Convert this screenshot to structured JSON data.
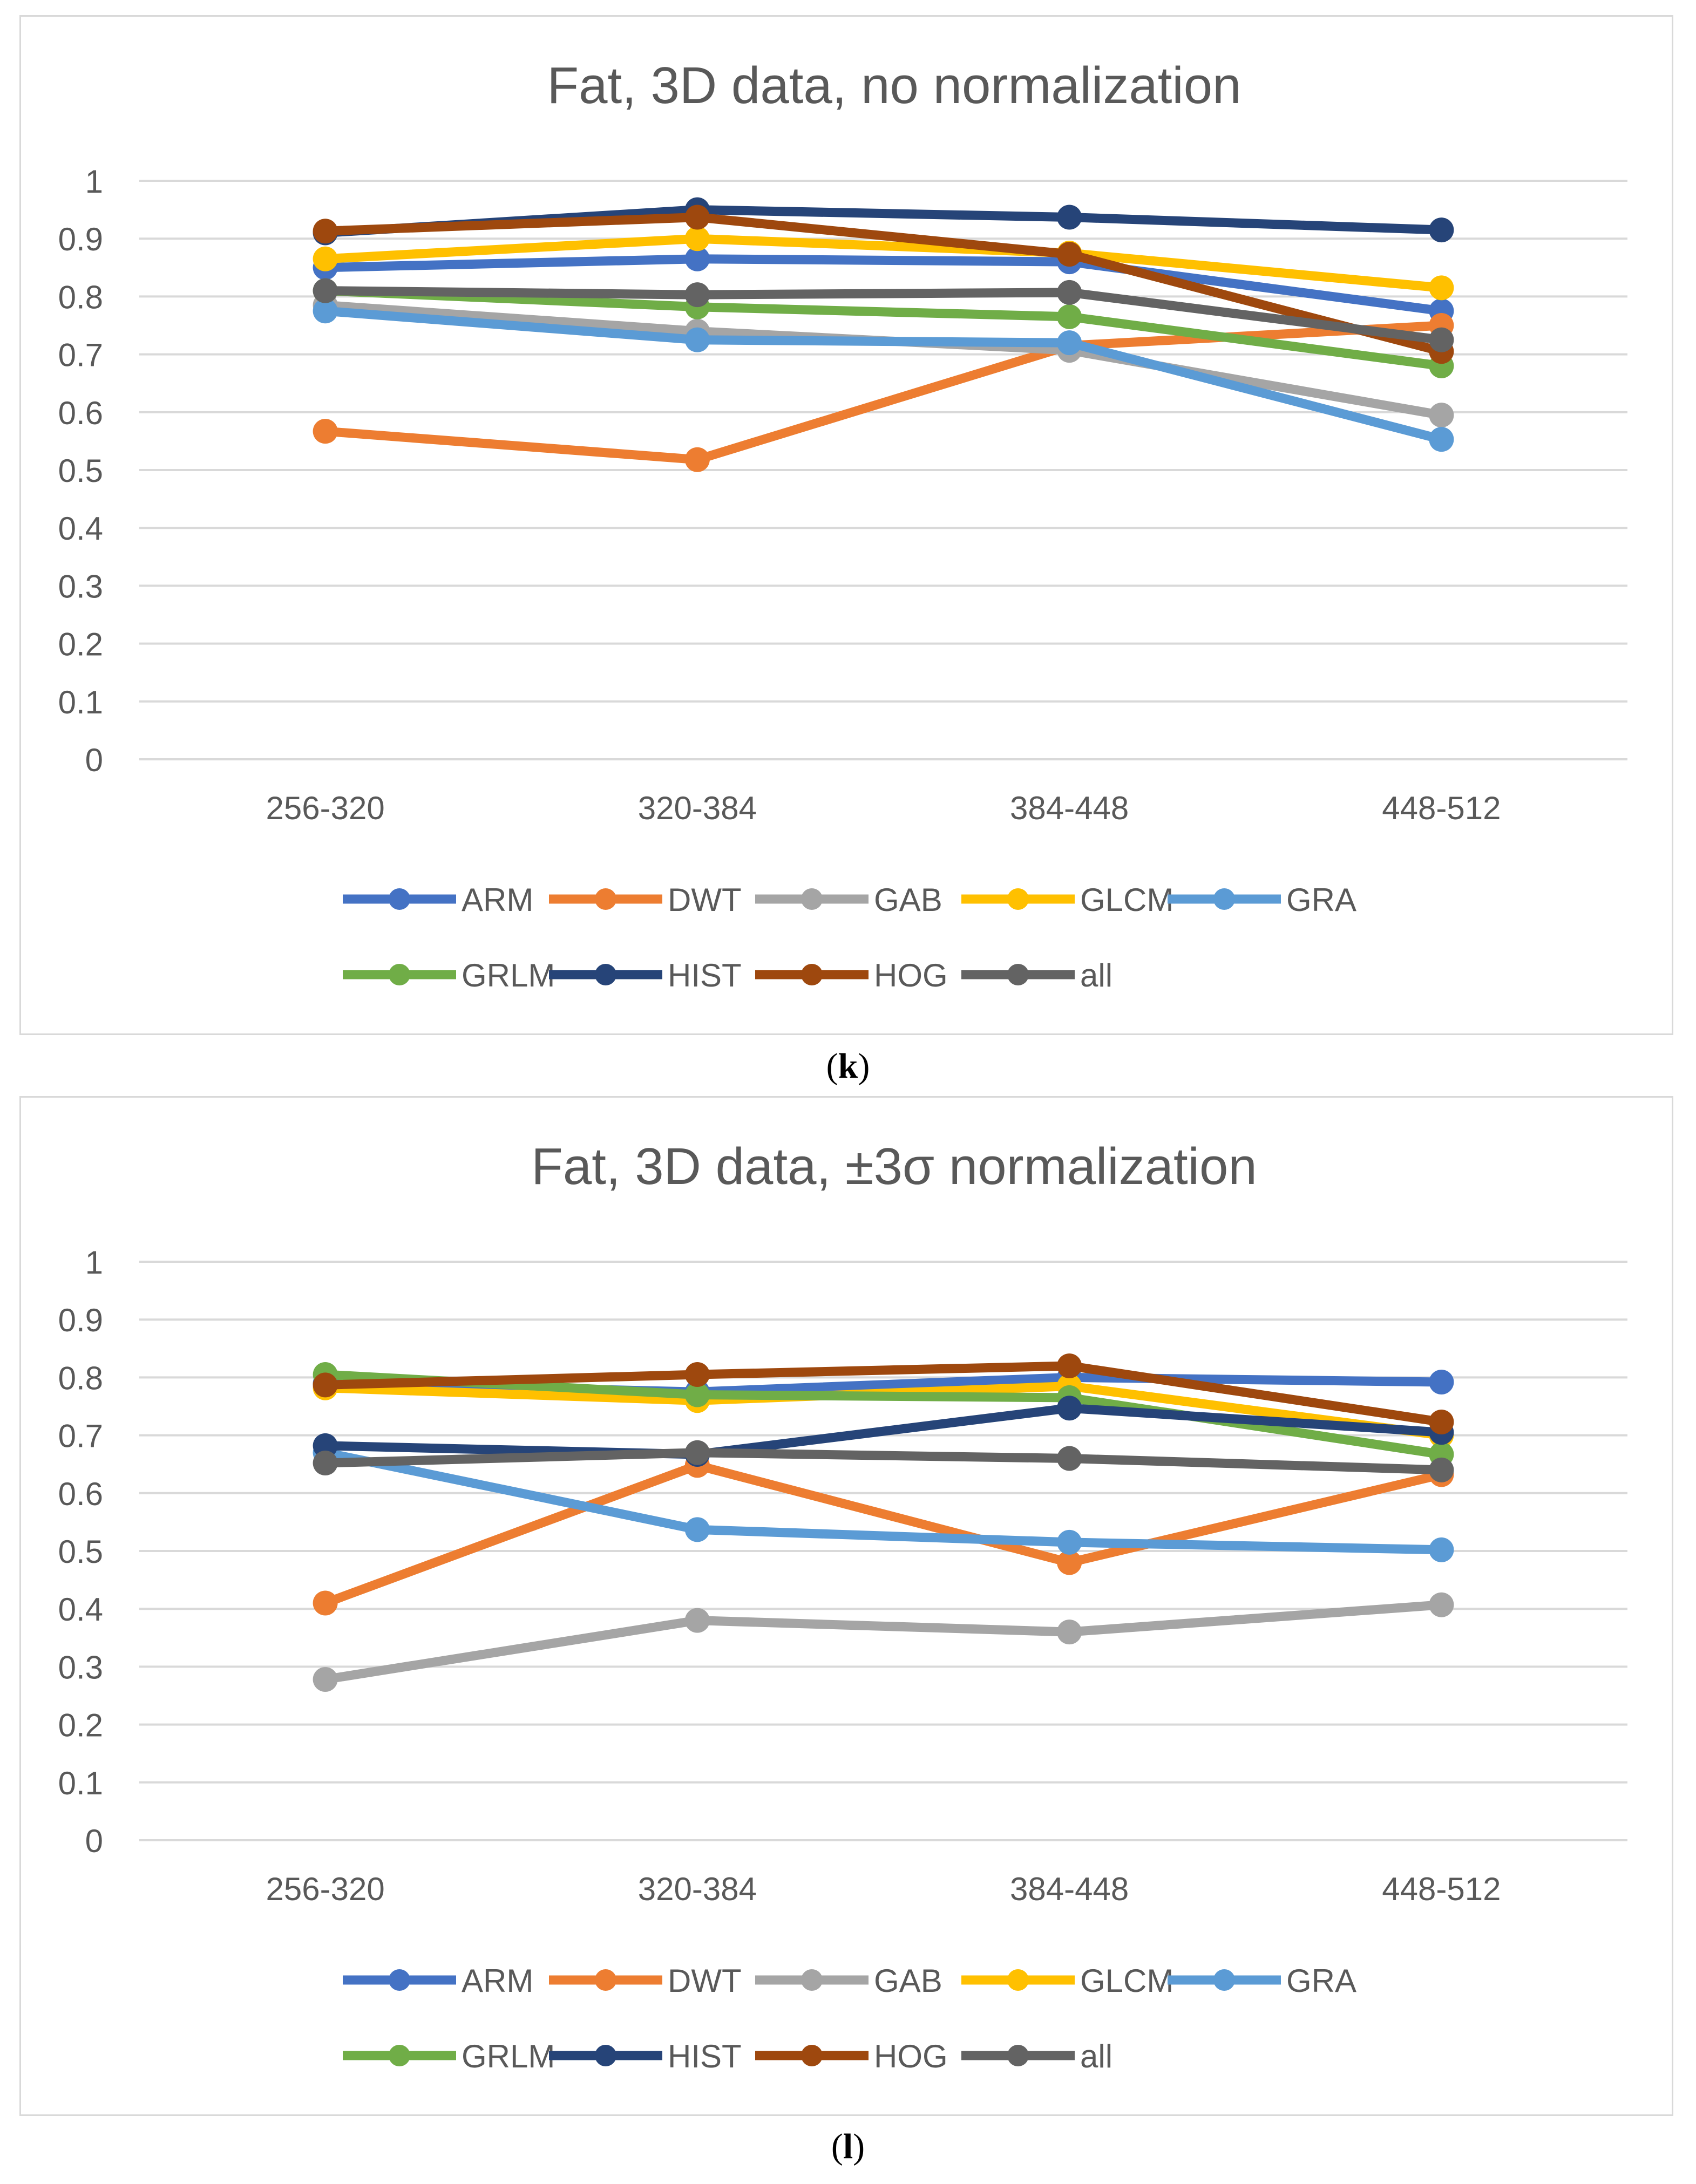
{
  "chart_data": [
    {
      "type": "line",
      "title": "Fat, 3D data, no normalization",
      "categories": [
        "256-320",
        "320-384",
        "384-448",
        "448-512"
      ],
      "y_ticks": [
        "0",
        "0.1",
        "0.2",
        "0.3",
        "0.4",
        "0.5",
        "0.6",
        "0.7",
        "0.8",
        "0.9",
        "1"
      ],
      "ylim": [
        0,
        1
      ],
      "grid": true,
      "legend_position": "bottom",
      "xlabel": "",
      "ylabel": "",
      "series": [
        {
          "name": "ARM",
          "color": "#4472C4",
          "values": [
            0.85,
            0.865,
            0.86,
            0.775
          ]
        },
        {
          "name": "DWT",
          "color": "#ED7D31",
          "values": [
            0.567,
            0.518,
            0.715,
            0.75
          ]
        },
        {
          "name": "GAB",
          "color": "#A5A5A5",
          "values": [
            0.785,
            0.74,
            0.707,
            0.595
          ]
        },
        {
          "name": "GLCM",
          "color": "#FFC000",
          "values": [
            0.865,
            0.9,
            0.875,
            0.815
          ]
        },
        {
          "name": "GRA",
          "color": "#5B9BD5",
          "values": [
            0.775,
            0.725,
            0.72,
            0.553
          ]
        },
        {
          "name": "GRLM",
          "color": "#70AD47",
          "values": [
            0.81,
            0.782,
            0.765,
            0.68
          ]
        },
        {
          "name": "HIST",
          "color": "#264478",
          "values": [
            0.91,
            0.95,
            0.937,
            0.915
          ]
        },
        {
          "name": "HOG",
          "color": "#9E480E",
          "values": [
            0.913,
            0.937,
            0.873,
            0.705
          ]
        },
        {
          "name": "all",
          "color": "#636363",
          "values": [
            0.81,
            0.803,
            0.807,
            0.725
          ]
        }
      ]
    },
    {
      "type": "line",
      "title": "Fat, 3D data, ±3σ normalization",
      "categories": [
        "256-320",
        "320-384",
        "384-448",
        "448-512"
      ],
      "y_ticks": [
        "0",
        "0.1",
        "0.2",
        "0.3",
        "0.4",
        "0.5",
        "0.6",
        "0.7",
        "0.8",
        "0.9",
        "1"
      ],
      "ylim": [
        0,
        1
      ],
      "grid": true,
      "legend_position": "bottom",
      "xlabel": "",
      "ylabel": "",
      "series": [
        {
          "name": "ARM",
          "color": "#4472C4",
          "values": [
            0.79,
            0.775,
            0.8,
            0.792
          ]
        },
        {
          "name": "DWT",
          "color": "#ED7D31",
          "values": [
            0.41,
            0.648,
            0.48,
            0.632
          ]
        },
        {
          "name": "GAB",
          "color": "#A5A5A5",
          "values": [
            0.278,
            0.38,
            0.36,
            0.407
          ]
        },
        {
          "name": "GLCM",
          "color": "#FFC000",
          "values": [
            0.782,
            0.76,
            0.785,
            0.7
          ]
        },
        {
          "name": "GRA",
          "color": "#5B9BD5",
          "values": [
            0.67,
            0.537,
            0.515,
            0.502
          ]
        },
        {
          "name": "GRLM",
          "color": "#70AD47",
          "values": [
            0.805,
            0.77,
            0.765,
            0.667
          ]
        },
        {
          "name": "HIST",
          "color": "#264478",
          "values": [
            0.682,
            0.667,
            0.747,
            0.705
          ]
        },
        {
          "name": "HOG",
          "color": "#9E480E",
          "values": [
            0.787,
            0.805,
            0.82,
            0.723
          ]
        },
        {
          "name": "all",
          "color": "#636363",
          "values": [
            0.652,
            0.67,
            0.66,
            0.64
          ]
        }
      ]
    }
  ],
  "captions": [
    {
      "open": "(",
      "letter": "k",
      "close": ")"
    },
    {
      "open": "(",
      "letter": "l",
      "close": ")"
    }
  ]
}
